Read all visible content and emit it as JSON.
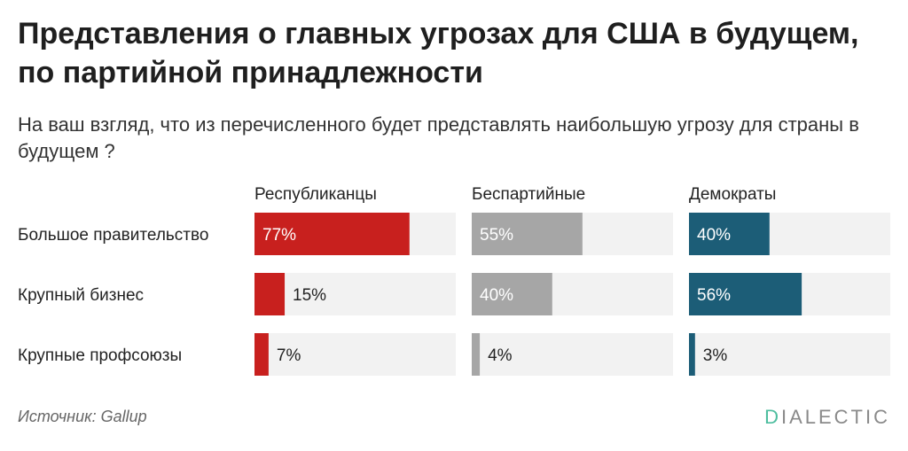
{
  "header": {
    "title": "Представления о главных угрозах для США в будущем, по партийной принадлежности",
    "subtitle": "На ваш взгляд, что из перечисленного будет представлять наибольшую угрозу для страны в будущем ?"
  },
  "chart_data": {
    "type": "bar",
    "categories": [
      "Большое правительство",
      "Крупный бизнес",
      "Крупные профсоюзы"
    ],
    "series": [
      {
        "name": "Республиканцы",
        "values": [
          77,
          15,
          7
        ],
        "color": "#c8201e"
      },
      {
        "name": "Беспартийные",
        "values": [
          55,
          40,
          4
        ],
        "color": "#a6a6a6"
      },
      {
        "name": "Демократы",
        "values": [
          40,
          56,
          3
        ],
        "color": "#1c5d77"
      }
    ],
    "value_suffix": "%",
    "xlim": [
      0,
      100
    ],
    "track_color": "#f2f2f2"
  },
  "footer": {
    "source": "Источник: Gallup",
    "logo_first": "D",
    "logo_rest": "IALECTIC"
  }
}
